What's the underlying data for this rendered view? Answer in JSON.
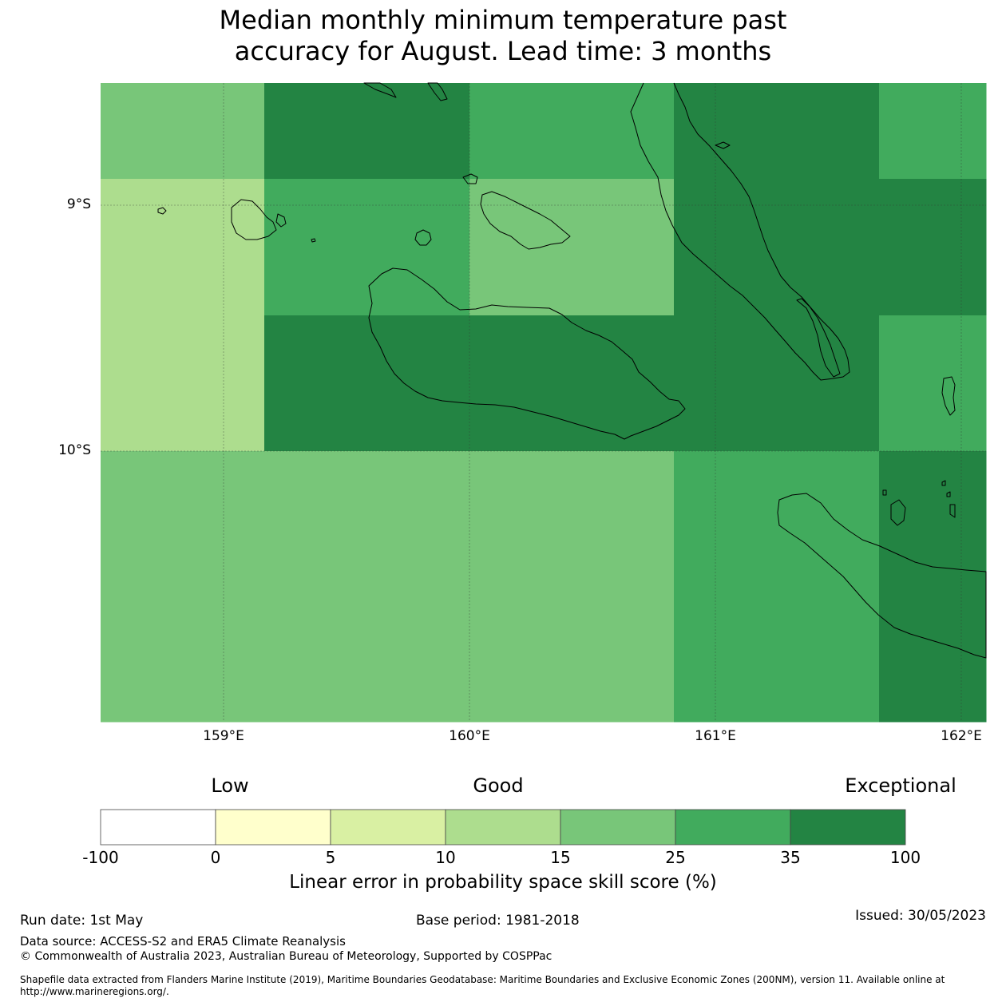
{
  "title": {
    "line1": "Median monthly minimum temperature past",
    "line2": "accuracy for August. Lead time: 3 months"
  },
  "map": {
    "lat_labels": [
      "9°S",
      "10°S"
    ],
    "lon_labels": [
      "159°E",
      "160°E",
      "161°E",
      "162°E"
    ],
    "grid_colors": [
      [
        "#78c679",
        "#238443",
        "#238443",
        "#41ab5d",
        "#41ab5d",
        "#238443",
        "#238443",
        "#41ab5d"
      ],
      [
        "#addd8e",
        "#41ab5d",
        "#41ab5d",
        "#78c679",
        "#78c679",
        "#238443",
        "#238443",
        "#238443"
      ],
      [
        "#addd8e",
        "#238443",
        "#238443",
        "#238443",
        "#238443",
        "#238443",
        "#238443",
        "#41ab5d"
      ],
      [
        "#78c679",
        "#78c679",
        "#78c679",
        "#78c679",
        "#78c679",
        "#41ab5d",
        "#41ab5d",
        "#238443"
      ]
    ]
  },
  "legend": {
    "categories": [
      "Low",
      "Good",
      "Exceptional"
    ],
    "bins": [
      {
        "color": "#ffffff"
      },
      {
        "color": "#ffffcc"
      },
      {
        "color": "#d9f0a3"
      },
      {
        "color": "#addd8e"
      },
      {
        "color": "#78c679"
      },
      {
        "color": "#41ab5d"
      },
      {
        "color": "#238443"
      }
    ],
    "ticks": [
      "-100",
      "0",
      "5",
      "10",
      "15",
      "25",
      "35",
      "100"
    ],
    "label": "Linear error in probability space skill score (%)"
  },
  "footer": {
    "run_date": "Run date: 1st May",
    "base_period": "Base period: 1981-2018",
    "issued": "Issued: 30/05/2023",
    "data_source": "Data source: ACCESS-S2 and ERA5 Climate Reanalysis",
    "copyright": "© Commonwealth of Australia 2023, Australian Bureau of Meteorology, Supported by COSPPac",
    "shapefile_line1": "Shapefile data extracted from Flanders Marine Institute (2019), Maritime Boundaries Geodatabase: Maritime Boundaries and Exclusive Economic Zones (200NM), version 11. Available online at",
    "shapefile_line2": "http://www.marineregions.org/."
  }
}
